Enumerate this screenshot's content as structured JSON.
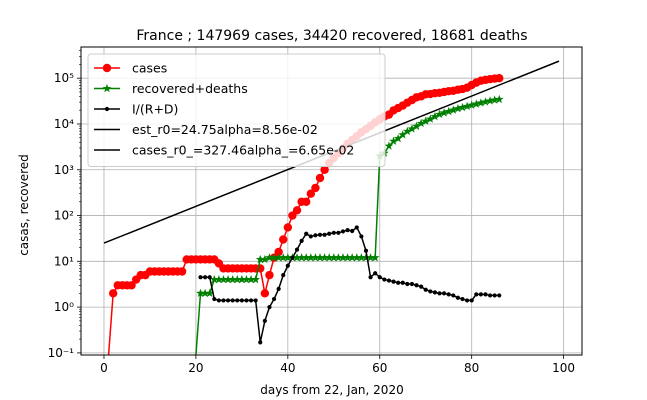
{
  "chart_data": {
    "type": "line",
    "title": "France ; 147969 cases, 34420 recovered, 18681 deaths",
    "xlabel": "days from 22, Jan, 2020",
    "ylabel": "casas, recovered",
    "xlim": [
      -5,
      104
    ],
    "ylim": [
      0.09,
      480000
    ],
    "yscale": "log",
    "grid": true,
    "legend_position": "top-left",
    "x_ticks": [
      0,
      20,
      40,
      60,
      80,
      100
    ],
    "x_tick_labels": [
      "0",
      "20",
      "40",
      "60",
      "80",
      "100"
    ],
    "y_ticks": [
      0.1,
      1,
      10,
      100,
      1000,
      10000,
      100000
    ],
    "y_tick_labels": [
      "10⁻¹",
      "10⁰",
      "10¹",
      "10²",
      "10³",
      "10⁴",
      "10⁵"
    ],
    "series": [
      {
        "name": "cases",
        "color": "#ff0000",
        "marker": "circle",
        "x": [
          1,
          2,
          3,
          4,
          5,
          6,
          7,
          8,
          9,
          10,
          11,
          12,
          13,
          14,
          15,
          16,
          17,
          18,
          19,
          20,
          21,
          22,
          23,
          24,
          25,
          26,
          27,
          28,
          29,
          30,
          31,
          32,
          33,
          34,
          35,
          36,
          37,
          38,
          39,
          40,
          41,
          42,
          43,
          44,
          45,
          46,
          47,
          48,
          49,
          50,
          51,
          52,
          53,
          54,
          55,
          56,
          57,
          58,
          59,
          60,
          61,
          62,
          63,
          64,
          65,
          66,
          67,
          68,
          69,
          70,
          71,
          72,
          73,
          74,
          75,
          76,
          77,
          78,
          79,
          80,
          81,
          82,
          83,
          84,
          85,
          86
        ],
        "y": [
          0.01,
          2,
          3,
          3,
          3,
          3,
          4,
          5,
          5,
          6,
          6,
          6,
          6,
          6,
          6,
          6,
          6,
          11,
          11,
          11,
          11,
          11,
          11,
          11,
          9,
          7,
          7,
          7,
          7,
          7,
          7,
          7,
          7,
          7,
          2,
          5,
          12,
          16,
          30,
          55,
          100,
          130,
          200,
          200,
          300,
          400,
          660,
          1000,
          1400,
          1800,
          2300,
          2900,
          3700,
          4500,
          5400,
          6600,
          7700,
          9100,
          10900,
          12600,
          14500,
          16000,
          19800,
          22300,
          25200,
          29200,
          33400,
          38100,
          40100,
          44500,
          45000,
          47000,
          48000,
          50000,
          52000,
          53000,
          56000,
          58000,
          62000,
          71000,
          80000,
          88000,
          92000,
          95000,
          98000,
          100000
        ]
      },
      {
        "name": "recovered+deaths",
        "color": "#008000",
        "marker": "star",
        "x": [
          20,
          21,
          22,
          23,
          24,
          25,
          26,
          27,
          28,
          29,
          30,
          31,
          32,
          33,
          34,
          35,
          36,
          37,
          38,
          39,
          40,
          41,
          42,
          43,
          44,
          45,
          46,
          47,
          48,
          49,
          50,
          51,
          52,
          53,
          54,
          55,
          56,
          57,
          58,
          59,
          60,
          61,
          62,
          63,
          64,
          65,
          66,
          67,
          68,
          69,
          70,
          71,
          72,
          73,
          74,
          75,
          76,
          77,
          78,
          79,
          80,
          81,
          82,
          83,
          84,
          85,
          86
        ],
        "y": [
          0.08,
          2,
          2,
          2,
          4,
          4,
          4,
          4,
          4,
          4,
          4,
          4,
          4,
          4,
          11,
          11,
          12,
          12,
          12,
          12,
          12,
          12,
          12,
          12,
          12,
          12,
          12,
          12,
          12,
          12,
          12,
          12,
          12,
          12,
          12,
          12,
          12,
          12,
          12,
          12,
          2000,
          2300,
          3300,
          4200,
          4800,
          5800,
          6900,
          7800,
          8900,
          10300,
          11500,
          12800,
          14500,
          16200,
          17500,
          18700,
          20100,
          21600,
          22900,
          24200,
          25700,
          27200,
          28800,
          30400,
          31900,
          33300,
          34500
        ]
      },
      {
        "name": "I/(R+D)",
        "color": "#000000",
        "marker": "dot",
        "x": [
          21,
          22,
          23,
          24,
          25,
          26,
          27,
          28,
          29,
          30,
          31,
          32,
          33,
          34,
          35,
          36,
          37,
          38,
          39,
          40,
          41,
          42,
          43,
          44,
          45,
          46,
          47,
          48,
          49,
          50,
          51,
          52,
          53,
          54,
          55,
          56,
          57,
          58,
          59,
          60,
          61,
          62,
          63,
          64,
          65,
          66,
          67,
          68,
          69,
          70,
          71,
          72,
          73,
          74,
          75,
          76,
          77,
          78,
          79,
          80,
          81,
          82,
          83,
          84,
          85,
          86
        ],
        "y": [
          4.5,
          4.5,
          4.5,
          1.5,
          1.4,
          1.4,
          1.4,
          1.4,
          1.4,
          1.4,
          1.4,
          1.4,
          1.4,
          0.17,
          0.5,
          1,
          1.5,
          2.5,
          5,
          8,
          12,
          18,
          28,
          40,
          35,
          37,
          38,
          38,
          40,
          42,
          42,
          45,
          48,
          46,
          55,
          35,
          17,
          4.5,
          5.5,
          4.5,
          4.0,
          3.8,
          3.6,
          3.4,
          3.4,
          3.2,
          3.2,
          3.0,
          2.8,
          2.4,
          2.2,
          2.1,
          2.0,
          2.0,
          1.9,
          1.8,
          1.6,
          1.5,
          1.4,
          1.4,
          1.9,
          1.9,
          1.9,
          1.8,
          1.8,
          1.8
        ]
      },
      {
        "name": "est_r0=24.75alpha=8.56e-02",
        "color": "#000000",
        "marker": "none",
        "x": [
          0,
          99
        ],
        "y": [
          25,
          236000
        ]
      },
      {
        "name": "cases_r0_=327.46alpha_=6.65e-02",
        "color": "#000000",
        "marker": "none",
        "x": [],
        "y": []
      }
    ]
  }
}
